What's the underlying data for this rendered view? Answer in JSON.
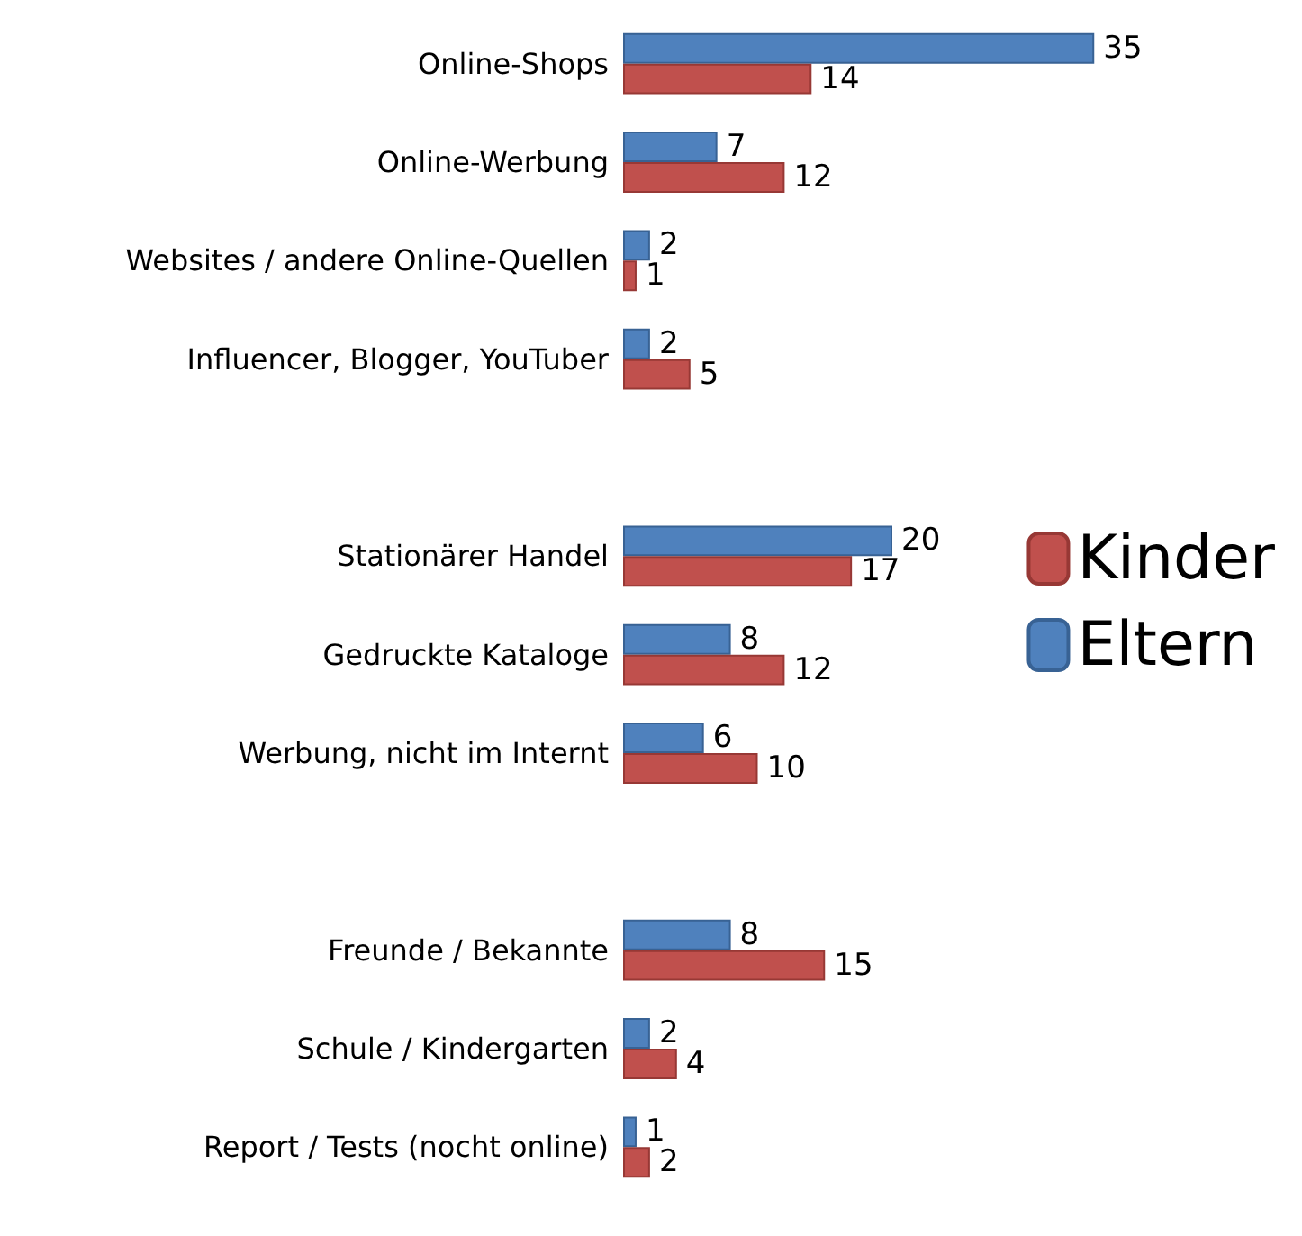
{
  "chart_data": {
    "type": "bar",
    "orientation": "horizontal",
    "categories": [
      "Online-Shops",
      "Online-Werbung",
      "Websites / andere Online-Quellen",
      "Influencer, Blogger, YouTuber",
      null,
      "Stationärer Handel",
      "Gedruckte Kataloge",
      "Werbung, nicht im Internt",
      null,
      "Freunde / Bekannte",
      "Schule / Kindergarten",
      "Report / Tests (nocht online)"
    ],
    "series": [
      {
        "name": "Eltern",
        "color": "#4f81bd",
        "values": [
          35,
          7,
          2,
          2,
          null,
          20,
          8,
          6,
          null,
          8,
          2,
          1
        ]
      },
      {
        "name": "Kinder",
        "color": "#c0504d",
        "values": [
          14,
          12,
          1,
          5,
          null,
          17,
          12,
          10,
          null,
          15,
          4,
          2
        ]
      }
    ],
    "data_labels": true,
    "legend": "right"
  }
}
